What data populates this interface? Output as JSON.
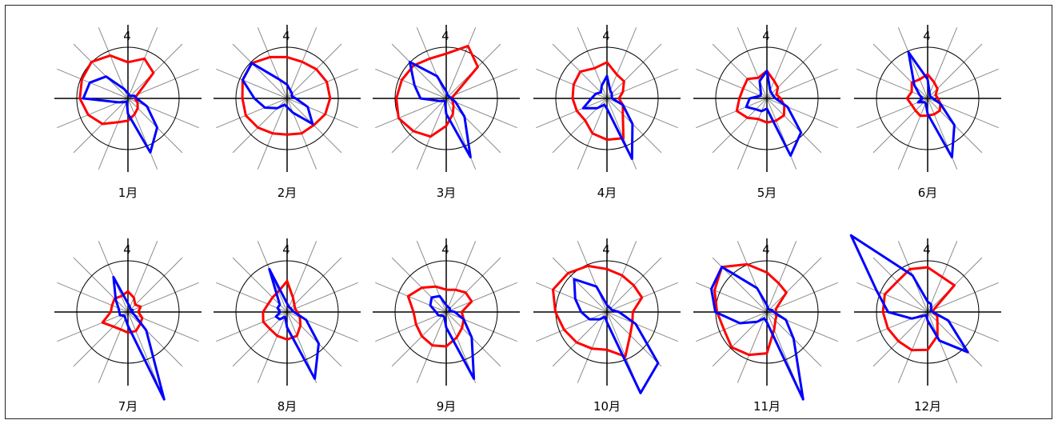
{
  "chart_data": {
    "type": "radar",
    "direction_count": 16,
    "direction_label": "4",
    "series_colors": {
      "outer": "#ff0000",
      "inner": "#0000ff"
    },
    "charts": [
      {
        "label": "1月",
        "red": [
          2.1,
          2.5,
          2.1,
          0.6,
          0.4,
          0.6,
          0.8,
          1.0,
          1.3,
          1.5,
          2.1,
          2.5,
          2.8,
          2.9,
          3.0,
          2.7
        ],
        "blue": [
          0.3,
          0.2,
          0.2,
          0.4,
          0.5,
          1.2,
          2.4,
          3.4,
          0.9,
          0.2,
          0.3,
          0.6,
          2.6,
          2.4,
          1.8,
          0.6
        ]
      },
      {
        "label": "2月",
        "red": [
          2.4,
          2.3,
          2.4,
          2.5,
          2.5,
          2.4,
          2.2,
          2.2,
          2.1,
          2.2,
          2.4,
          2.6,
          2.6,
          2.8,
          2.9,
          2.6
        ],
        "blue": [
          0.8,
          0.5,
          0.4,
          0.3,
          0.5,
          1.3,
          2.1,
          0.9,
          0.5,
          0.4,
          0.8,
          1.4,
          1.9,
          2.8,
          2.9,
          1.2
        ]
      },
      {
        "label": "3月",
        "red": [
          2.6,
          3.3,
          2.6,
          0.5,
          0.3,
          0.4,
          0.6,
          1.0,
          1.6,
          2.4,
          2.7,
          3.0,
          2.9,
          2.8,
          2.7,
          2.5
        ],
        "blue": [
          0.4,
          0.2,
          0.2,
          0.2,
          0.3,
          0.6,
          1.5,
          3.7,
          0.9,
          0.2,
          0.2,
          0.4,
          1.5,
          2.0,
          3.0,
          1.4
        ]
      },
      {
        "label": "4月",
        "red": [
          2.1,
          1.5,
          1.4,
          1.0,
          0.7,
          1.0,
          1.3,
          2.5,
          2.4,
          2.2,
          1.8,
          1.9,
          2.0,
          2.1,
          2.2,
          1.9
        ],
        "blue": [
          1.3,
          0.5,
          0.4,
          0.3,
          0.3,
          1.0,
          2.1,
          3.8,
          0.6,
          0.4,
          0.8,
          1.5,
          0.9,
          0.7,
          0.5,
          0.8
        ]
      },
      {
        "label": "5月",
        "red": [
          1.6,
          1.1,
          0.9,
          0.6,
          0.8,
          1.1,
          1.4,
          1.4,
          1.4,
          1.3,
          1.6,
          1.9,
          1.6,
          1.5,
          1.6,
          1.3
        ],
        "blue": [
          1.6,
          0.5,
          0.4,
          0.4,
          0.5,
          1.3,
          2.8,
          3.6,
          0.6,
          0.8,
          0.9,
          1.3,
          1.0,
          0.4,
          0.5,
          1.1
        ]
      },
      {
        "label": "6月",
        "red": [
          1.4,
          1.0,
          0.8,
          0.5,
          0.6,
          0.8,
          1.0,
          1.0,
          1.0,
          1.1,
          1.0,
          1.0,
          1.2,
          1.0,
          1.3,
          1.2
        ],
        "blue": [
          1.1,
          0.3,
          0.2,
          0.2,
          0.3,
          0.8,
          2.2,
          3.7,
          0.9,
          0.3,
          0.3,
          0.6,
          0.3,
          0.5,
          1.1,
          2.9
        ]
      },
      {
        "label": "7月",
        "red": [
          1.2,
          0.9,
          0.6,
          0.8,
          0.6,
          0.9,
          1.0,
          1.2,
          1.2,
          1.1,
          1.2,
          1.6,
          1.0,
          1.0,
          1.1,
          1.0
        ],
        "blue": [
          0.5,
          0.3,
          0.2,
          0.3,
          0.2,
          0.4,
          1.5,
          5.5,
          0.8,
          0.4,
          0.3,
          0.5,
          0.5,
          0.6,
          1.0,
          2.2
        ]
      },
      {
        "label": "8月",
        "red": [
          1.8,
          0.9,
          0.6,
          0.5,
          0.6,
          0.8,
          1.1,
          1.5,
          1.6,
          1.5,
          1.4,
          1.5,
          1.4,
          1.2,
          1.2,
          1.3
        ],
        "blue": [
          0.5,
          0.3,
          0.3,
          0.3,
          0.4,
          1.2,
          2.6,
          4.2,
          0.9,
          0.3,
          0.6,
          0.7,
          0.4,
          0.6,
          0.6,
          2.7
        ]
      },
      {
        "label": "9月",
        "red": [
          1.3,
          1.4,
          1.6,
          1.6,
          0.9,
          1.1,
          1.3,
          1.6,
          2.0,
          2.1,
          2.0,
          1.9,
          1.9,
          2.4,
          2.0,
          1.6
        ],
        "blue": [
          0.4,
          0.3,
          0.3,
          0.2,
          0.5,
          1.1,
          2.1,
          4.2,
          0.9,
          0.3,
          0.3,
          0.5,
          0.6,
          1.0,
          1.2,
          1.0
        ]
      },
      {
        "label": "10月",
        "red": [
          2.5,
          2.3,
          2.2,
          2.2,
          1.5,
          1.6,
          1.9,
          2.8,
          2.2,
          2.3,
          2.5,
          2.7,
          3.0,
          3.4,
          3.2,
          2.9
        ],
        "blue": [
          0.4,
          0.3,
          0.3,
          0.3,
          0.7,
          1.8,
          4.2,
          5.1,
          0.6,
          0.3,
          0.6,
          1.1,
          1.5,
          2.0,
          2.7,
          1.6
        ]
      },
      {
        "label": "11月",
        "red": [
          2.3,
          1.8,
          1.6,
          0.6,
          0.5,
          0.6,
          0.7,
          1.1,
          2.4,
          2.7,
          2.9,
          2.7,
          2.9,
          3.3,
          3.7,
          3.0
        ],
        "blue": [
          0.4,
          0.2,
          0.2,
          0.3,
          0.4,
          1.2,
          2.2,
          5.5,
          0.6,
          0.4,
          0.8,
          1.7,
          3.0,
          3.5,
          3.7,
          1.5
        ]
      },
      {
        "label": "12月",
        "red": [
          2.6,
          2.2,
          2.2,
          0.4,
          0.3,
          0.6,
          0.8,
          1.5,
          2.2,
          2.4,
          2.4,
          2.5,
          2.6,
          2.7,
          2.5,
          2.7
        ],
        "blue": [
          0.6,
          0.5,
          0.3,
          0.2,
          0.3,
          1.3,
          3.3,
          1.8,
          0.5,
          0.2,
          0.3,
          1.0,
          2.3,
          3.2,
          6.3,
          2.3
        ]
      }
    ]
  }
}
